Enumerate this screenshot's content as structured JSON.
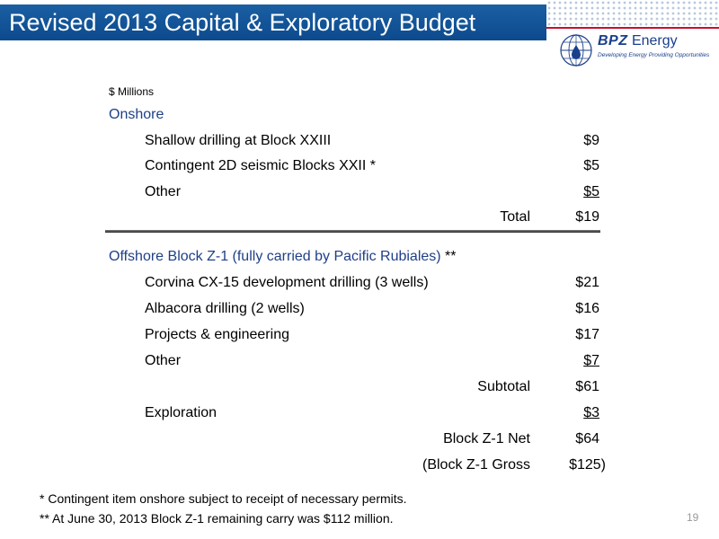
{
  "header": {
    "title": "Revised 2013 Capital & Exploratory Budget",
    "accent_color": "#0c4a8d",
    "rule_color": "#c8102e"
  },
  "logo": {
    "icon": "globe-oil-drop-icon",
    "brand_bold": "BPZ",
    "brand_rest": " Energy",
    "tagline": "Developing Energy   Providing Opportunities"
  },
  "table": {
    "units": "$ Millions",
    "onshore": {
      "heading": "Onshore",
      "items": [
        {
          "label": "Shallow drilling at Block XXIII",
          "amount": "$9"
        },
        {
          "label": "Contingent 2D seismic Blocks XXII *",
          "amount": "$5"
        },
        {
          "label": "Other",
          "amount": "$5"
        }
      ],
      "total_label": "Total",
      "total_amount": "$19"
    },
    "offshore": {
      "heading": "Offshore Block Z-1 (fully carried by Pacific Rubiales)",
      "heading_suffix": " **",
      "items": [
        {
          "label": "Corvina CX-15 development drilling (3 wells)",
          "amount": "$21"
        },
        {
          "label": "Albacora drilling (2 wells)",
          "amount": "$16"
        },
        {
          "label": "Projects & engineering",
          "amount": "$17"
        },
        {
          "label": "Other",
          "amount": "$7"
        }
      ],
      "subtotal_label": "Subtotal",
      "subtotal_amount": "$61",
      "exploration_label": "Exploration",
      "exploration_amount": "$3",
      "net_label": "Block Z-1 Net",
      "net_amount": "$64",
      "gross_label": "(Block Z-1 Gross",
      "gross_amount": "$125)"
    }
  },
  "footnotes": [
    "*   Contingent item onshore subject to receipt of necessary permits.",
    "** At June 30, 2013 Block Z-1 remaining carry was $112 million."
  ],
  "page_number": "19"
}
